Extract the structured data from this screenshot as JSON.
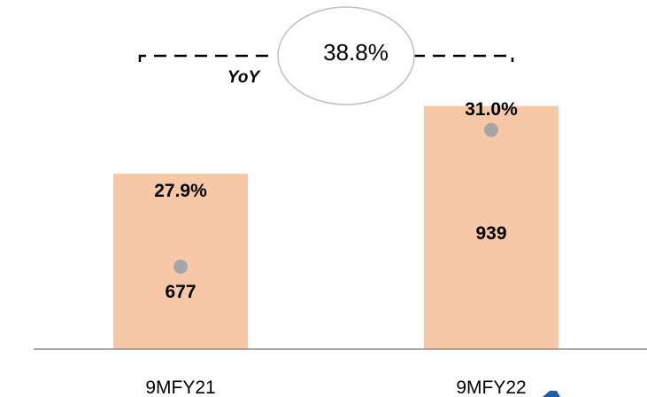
{
  "chart_data": {
    "type": "bar",
    "categories": [
      "9MFY21",
      "9MFY22"
    ],
    "series": [
      {
        "values": [
          677,
          939
        ]
      },
      {
        "values": [
          27.9,
          31.0
        ]
      }
    ],
    "value_labels": [
      "677",
      "939"
    ],
    "margin_labels": [
      "27.9%",
      "31.0%"
    ],
    "yoy": {
      "label": "YoY",
      "value": "38.8%"
    },
    "colors": {
      "bar": "#f7c8a8",
      "marker": "#a6a6a6",
      "axis": "#8c8c8c",
      "bubble_stroke": "#bfbfbf",
      "brand_mark": "#1f5fa8"
    }
  }
}
